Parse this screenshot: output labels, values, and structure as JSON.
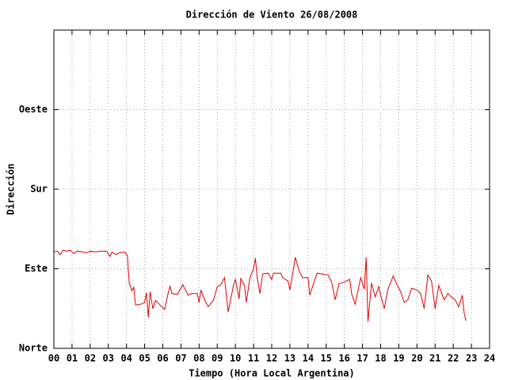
{
  "chart_data": {
    "type": "line",
    "title": "Dirección de Viento 26/08/2008",
    "x_label": "Tiempo (Hora Local Argentina)",
    "y_label": "Dirección",
    "color": "#e00000",
    "grid": true,
    "xlim": [
      0,
      24
    ],
    "ylim": [
      0,
      360
    ],
    "xticks": [
      {
        "value": 0,
        "label": "00"
      },
      {
        "value": 1,
        "label": "01"
      },
      {
        "value": 2,
        "label": "02"
      },
      {
        "value": 3,
        "label": "03"
      },
      {
        "value": 4,
        "label": "04"
      },
      {
        "value": 5,
        "label": "05"
      },
      {
        "value": 6,
        "label": "06"
      },
      {
        "value": 7,
        "label": "07"
      },
      {
        "value": 8,
        "label": "08"
      },
      {
        "value": 9,
        "label": "09"
      },
      10,
      11,
      12,
      13,
      14,
      15,
      16,
      17,
      18,
      19,
      20,
      21,
      22,
      23,
      24
    ],
    "yticks": [
      {
        "value": 0,
        "label": "Norte"
      },
      {
        "value": 90,
        "label": "Este"
      },
      {
        "value": 180,
        "label": "Sur"
      },
      {
        "value": 270,
        "label": "Oeste"
      }
    ],
    "x": [
      0.0,
      0.2,
      0.35,
      0.5,
      0.7,
      0.9,
      1.1,
      1.3,
      1.6,
      1.8,
      2.0,
      2.3,
      2.6,
      2.9,
      3.1,
      3.2,
      3.4,
      3.6,
      3.9,
      4.05,
      4.15,
      4.3,
      4.4,
      4.5,
      4.8,
      5.0,
      5.1,
      5.2,
      5.3,
      5.45,
      5.6,
      5.8,
      6.1,
      6.3,
      6.4,
      6.5,
      6.8,
      7.1,
      7.2,
      7.4,
      7.6,
      7.9,
      8.0,
      8.1,
      8.3,
      8.5,
      8.8,
      9.0,
      9.2,
      9.4,
      9.6,
      9.9,
      10.0,
      10.2,
      10.3,
      10.5,
      10.6,
      10.8,
      11.0,
      11.1,
      11.2,
      11.35,
      11.5,
      11.8,
      12.0,
      12.1,
      12.5,
      12.6,
      12.9,
      13.0,
      13.2,
      13.3,
      13.5,
      13.7,
      14.0,
      14.1,
      14.3,
      14.5,
      14.8,
      15.1,
      15.3,
      15.5,
      15.7,
      16.0,
      16.3,
      16.4,
      16.6,
      16.9,
      17.1,
      17.2,
      17.3,
      17.5,
      17.7,
      17.9,
      18.0,
      18.2,
      18.4,
      18.7,
      18.9,
      19.1,
      19.3,
      19.5,
      19.7,
      20.0,
      20.2,
      20.4,
      20.6,
      20.8,
      21.0,
      21.2,
      21.5,
      21.7,
      21.9,
      22.1,
      22.3,
      22.5,
      22.6,
      22.7
    ],
    "values": [
      109,
      110,
      106,
      111,
      110,
      111,
      107,
      110,
      109,
      108,
      110,
      109,
      110,
      110,
      104,
      109,
      106,
      108,
      109,
      105,
      74,
      65,
      69,
      49,
      50,
      52,
      63,
      35,
      64,
      45,
      54,
      50,
      44,
      63,
      70,
      62,
      61,
      72,
      68,
      60,
      62,
      62,
      52,
      66,
      55,
      47,
      55,
      70,
      72,
      80,
      41,
      72,
      78,
      56,
      79,
      71,
      52,
      80,
      90,
      102,
      80,
      62,
      84,
      85,
      78,
      85,
      85,
      80,
      76,
      66,
      90,
      103,
      88,
      80,
      80,
      60,
      73,
      85,
      84,
      83,
      75,
      55,
      73,
      75,
      78,
      62,
      50,
      80,
      67,
      103,
      30,
      74,
      58,
      70,
      60,
      45,
      67,
      82,
      72,
      64,
      52,
      55,
      68,
      66,
      62,
      45,
      83,
      76,
      45,
      71,
      55,
      62,
      58,
      55,
      47,
      60,
      40,
      31
    ]
  }
}
